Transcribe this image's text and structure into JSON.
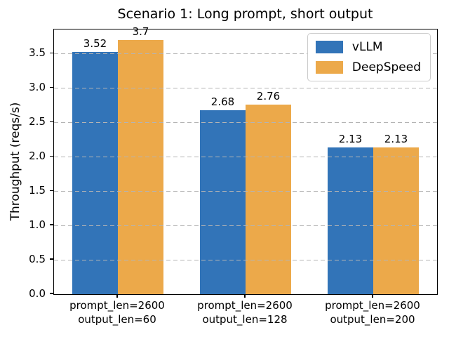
{
  "window": {
    "background": "#ffffff"
  },
  "chart_data": {
    "type": "bar",
    "title": "Scenario 1: Long prompt, short output",
    "xlabel": "",
    "ylabel": "Throughput (reqs/s)",
    "categories": [
      [
        "prompt_len=2600",
        "output_len=60"
      ],
      [
        "prompt_len=2600",
        "output_len=128"
      ],
      [
        "prompt_len=2600",
        "output_len=200"
      ]
    ],
    "series": [
      {
        "name": "vLLM",
        "color": "#3274b8",
        "values": [
          3.52,
          2.68,
          2.13
        ],
        "value_labels": [
          "3.52",
          "2.68",
          "2.13"
        ]
      },
      {
        "name": "DeepSpeed",
        "color": "#eca94a",
        "values": [
          3.7,
          2.76,
          2.13
        ],
        "value_labels": [
          "3.7",
          "2.76",
          "2.13"
        ]
      }
    ],
    "yticks": [
      0.0,
      0.5,
      1.0,
      1.5,
      2.0,
      2.5,
      3.0,
      3.5
    ],
    "ytick_labels": [
      "0.0",
      "0.5",
      "1.0",
      "1.5",
      "2.0",
      "2.5",
      "3.0",
      "3.5"
    ],
    "ylim": [
      0,
      3.85
    ],
    "grid": {
      "axis": "y",
      "style": "dashed",
      "color": "#b4b4b4",
      "above_bars": true
    },
    "legend_position": "upper right",
    "frame_color": "#000000",
    "text_color": "#000000"
  }
}
